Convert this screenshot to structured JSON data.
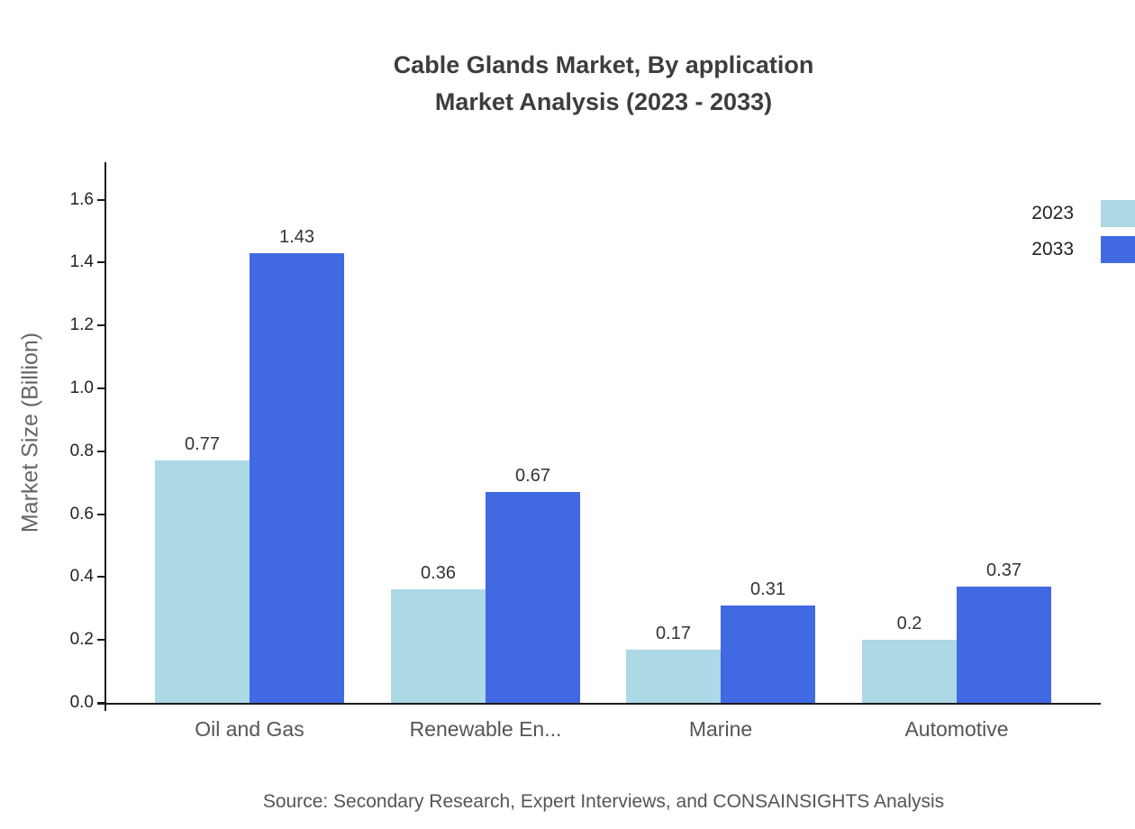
{
  "title": {
    "line1": "Cable Glands Market, By application",
    "line2": "Market Analysis (2023 - 2033)"
  },
  "source": "Source: Secondary Research, Expert Interviews, and CONSAINSIGHTS Analysis",
  "chart_data": {
    "type": "bar",
    "title": "Cable Glands Market, By application Market Analysis (2023 - 2033)",
    "categories": [
      "Oil and Gas",
      "Renewable En...",
      "Marine",
      "Automotive"
    ],
    "series": [
      {
        "name": "2023",
        "color": "#ADD8E6",
        "values": [
          0.77,
          0.36,
          0.17,
          0.2
        ]
      },
      {
        "name": "2033",
        "color": "#4169E1",
        "values": [
          1.43,
          0.67,
          0.31,
          0.37
        ]
      }
    ],
    "xlabel": "",
    "ylabel": "Market Size (Billion)",
    "ylim": [
      0,
      1.72
    ],
    "yticks": [
      0.0,
      0.2,
      0.4,
      0.6,
      0.8,
      1.0,
      1.2,
      1.4,
      1.6
    ],
    "grid": false,
    "legend_position": "top-right"
  }
}
